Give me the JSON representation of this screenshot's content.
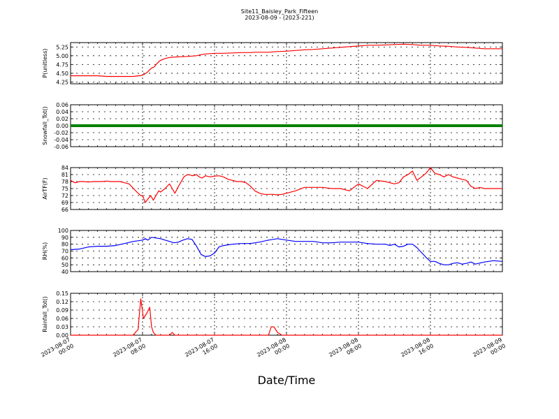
{
  "title_line1": "Site11_Baisley_Park_Fifteen",
  "title_line2": "2023-08-09 - (2023-221)",
  "xlabel": "Date/Time",
  "x_ticks": [
    {
      "line1": "2023-08-07",
      "line2": "00:00"
    },
    {
      "line1": "2023-08-07",
      "line2": "08:00"
    },
    {
      "line1": "2023-08-07",
      "line2": "16:00"
    },
    {
      "line1": "2023-08-08",
      "line2": "00:00"
    },
    {
      "line1": "2023-08-08",
      "line2": "08:00"
    },
    {
      "line1": "2023-08-08",
      "line2": "16:00"
    },
    {
      "line1": "2023-08-09",
      "line2": "00:00"
    }
  ],
  "chart_data": [
    {
      "type": "line",
      "ylabel": "P(unitless)",
      "color": "#ff0000",
      "ylim": [
        4.2,
        5.375
      ],
      "yticks": [
        "4.25",
        "4.50",
        "4.75",
        "5.00",
        "5.25"
      ],
      "x_hours": [
        0,
        2,
        3,
        4,
        5,
        5.5,
        6,
        6.5,
        7,
        7.5,
        7.8,
        8,
        8.2,
        8.5,
        8.8,
        9,
        9.3,
        9.5,
        9.8,
        10,
        10.5,
        11,
        12,
        13,
        14,
        14.5,
        15,
        16,
        17,
        18,
        19,
        20,
        20.5,
        21,
        22,
        23,
        24,
        25,
        26,
        27,
        28,
        29,
        30,
        31,
        32,
        33,
        34,
        35,
        36,
        37,
        38,
        39,
        40,
        41,
        42,
        43,
        44,
        45,
        46,
        47,
        48
      ],
      "values": [
        4.43,
        4.43,
        4.43,
        4.41,
        4.41,
        4.41,
        4.41,
        4.41,
        4.41,
        4.43,
        4.43,
        4.45,
        4.47,
        4.52,
        4.6,
        4.65,
        4.68,
        4.75,
        4.83,
        4.87,
        4.92,
        4.95,
        4.97,
        4.98,
        5.0,
        5.03,
        5.05,
        5.07,
        5.07,
        5.08,
        5.09,
        5.09,
        5.1,
        5.1,
        5.1,
        5.12,
        5.13,
        5.15,
        5.17,
        5.18,
        5.2,
        5.22,
        5.24,
        5.26,
        5.28,
        5.3,
        5.3,
        5.31,
        5.32,
        5.33,
        5.32,
        5.3,
        5.3,
        5.28,
        5.27,
        5.25,
        5.24,
        5.22,
        5.2,
        5.2,
        5.2
      ]
    },
    {
      "type": "line",
      "ylabel": "Snowfall_Tot()",
      "color": "#008000",
      "ylim": [
        -0.06,
        0.06
      ],
      "yticks": [
        "-0.06",
        "-0.04",
        "-0.02",
        "0.00",
        "0.02",
        "0.04",
        "0.06"
      ],
      "x_hours": [
        0,
        4,
        8,
        12,
        16,
        20,
        24,
        28,
        32,
        36,
        40,
        44,
        48
      ],
      "values": [
        0,
        0,
        0,
        0,
        0,
        0,
        0,
        0,
        0,
        0,
        0,
        0,
        0
      ]
    },
    {
      "type": "line",
      "ylabel": "AirTF(F)",
      "color": "#ff0000",
      "ylim": [
        66,
        84
      ],
      "yticks": [
        "66",
        "69",
        "72",
        "75",
        "78",
        "81",
        "84"
      ],
      "x_hours": [
        0,
        0.5,
        1,
        1.5,
        2,
        2.5,
        3,
        3.5,
        4,
        4.5,
        5,
        5.5,
        6,
        6.5,
        7,
        7.5,
        7.8,
        8,
        8.3,
        8.6,
        8.9,
        9.2,
        9.5,
        9.8,
        10,
        10.5,
        11,
        11.3,
        11.6,
        12,
        12.3,
        12.6,
        13,
        13.3,
        13.6,
        14,
        14.3,
        14.6,
        15,
        15.5,
        16,
        16.5,
        17,
        17.5,
        18,
        18.5,
        19,
        19.5,
        20,
        20.5,
        21,
        21.5,
        22,
        22.5,
        23,
        23.5,
        24,
        25,
        26,
        27,
        28,
        29,
        30,
        31,
        32,
        33,
        34,
        35,
        35.5,
        36,
        36.5,
        37,
        37.5,
        38,
        38.5,
        39,
        39.5,
        40,
        40.5,
        41,
        41.5,
        42,
        42.5,
        43,
        43.5,
        44,
        44.5,
        45,
        45.5,
        46,
        47,
        48
      ],
      "values": [
        78.5,
        77.5,
        78,
        78,
        77.8,
        78,
        78,
        78,
        78.2,
        78,
        78,
        78,
        77.5,
        77,
        75,
        73,
        72,
        72,
        69,
        70.5,
        72,
        70,
        72,
        74,
        73.5,
        75,
        77,
        75,
        73,
        76,
        78,
        80,
        81,
        80.8,
        80.5,
        81,
        80,
        79.5,
        80.5,
        80,
        80.3,
        80.5,
        80,
        79,
        78.5,
        78,
        78,
        77.5,
        76,
        74,
        73,
        72.5,
        72.5,
        72.5,
        72.3,
        72.5,
        73,
        74,
        75.5,
        75.5,
        75.5,
        75,
        75,
        74,
        77,
        75,
        78.5,
        78,
        77.5,
        77,
        77.5,
        80,
        81,
        82.5,
        78.5,
        80,
        81.5,
        84,
        81.5,
        81,
        80,
        81,
        80,
        79.5,
        79,
        78.5,
        76,
        75,
        75.5,
        75,
        75,
        75
      ]
    },
    {
      "type": "line",
      "ylabel": "RH(%)",
      "color": "#0000ff",
      "ylim": [
        40,
        100
      ],
      "yticks": [
        "40",
        "50",
        "60",
        "70",
        "80",
        "90",
        "100"
      ],
      "x_hours": [
        0,
        1,
        2,
        3,
        4,
        5,
        6,
        7,
        7.5,
        8,
        8.3,
        8.6,
        9,
        9.5,
        10,
        10.5,
        11,
        11.5,
        12,
        12.5,
        13,
        13.5,
        14,
        14.5,
        15,
        15.5,
        16,
        16.5,
        17,
        18,
        19,
        20,
        21,
        22,
        23,
        24,
        25,
        26,
        27,
        28,
        29,
        30,
        31,
        32,
        33,
        34,
        35,
        35.5,
        36,
        36.5,
        37,
        37.5,
        38,
        38.5,
        39,
        39.5,
        40,
        40.5,
        41,
        41.5,
        42,
        42.5,
        43,
        43.5,
        44,
        44.5,
        45,
        46,
        47,
        48
      ],
      "values": [
        72,
        73,
        76,
        77,
        77,
        78,
        81,
        84,
        85,
        86,
        88,
        86,
        90,
        89,
        88,
        86,
        84,
        82,
        83,
        86,
        88,
        87,
        77,
        65,
        62,
        63,
        67,
        76,
        78,
        80,
        81,
        81,
        83,
        86,
        88,
        86,
        84,
        84,
        84,
        82,
        82,
        83,
        83,
        83,
        81,
        80,
        80,
        78,
        80,
        76,
        77,
        80,
        80,
        75,
        68,
        61,
        55,
        55,
        52,
        50,
        50,
        52,
        53,
        51,
        52,
        54,
        51,
        54,
        56,
        55
      ]
    },
    {
      "type": "line",
      "ylabel": "Rainfall_Tot()",
      "color": "#ff0000",
      "ylim": [
        0,
        0.15
      ],
      "yticks": [
        "0.00",
        "0.03",
        "0.06",
        "0.09",
        "0.12",
        "0.15"
      ],
      "x_hours": [
        0,
        6,
        7,
        7.2,
        7.5,
        7.8,
        8.1,
        8.5,
        8.8,
        9.0,
        9.2,
        9.5,
        10,
        11,
        11.3,
        11.6,
        12,
        22,
        22.3,
        22.6,
        23,
        23.5,
        48
      ],
      "values": [
        0,
        0,
        0,
        0.01,
        0.02,
        0.13,
        0.06,
        0.08,
        0.1,
        0.03,
        0.01,
        0,
        0,
        0,
        0.01,
        0,
        0,
        0,
        0.03,
        0.03,
        0.01,
        0,
        0
      ]
    }
  ]
}
